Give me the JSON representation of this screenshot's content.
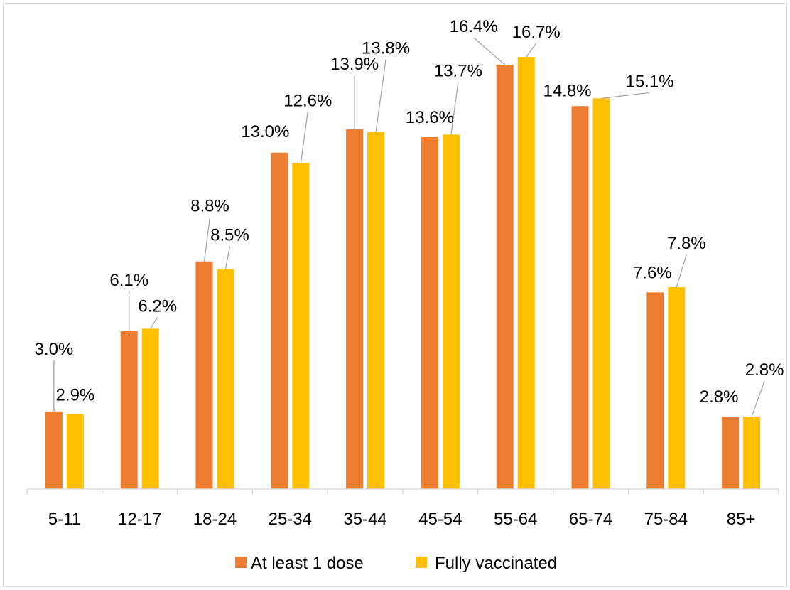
{
  "chart_data": {
    "type": "bar",
    "title": "",
    "xlabel": "",
    "ylabel": "",
    "ylim": [
      0,
      18
    ],
    "grid": false,
    "legend_position": "bottom",
    "categories": [
      "5-11",
      "12-17",
      "18-24",
      "25-34",
      "35-44",
      "45-54",
      "55-64",
      "65-74",
      "75-84",
      "85+"
    ],
    "series": [
      {
        "name": "At least 1 dose",
        "color": "#ed7d31",
        "values": [
          3.0,
          6.1,
          8.8,
          13.0,
          13.9,
          13.6,
          16.4,
          14.8,
          7.6,
          2.8
        ],
        "labels": [
          "3.0%",
          "6.1%",
          "8.8%",
          "13.0%",
          "13.9%",
          "13.6%",
          "16.4%",
          "14.8%",
          "7.6%",
          "2.8%"
        ]
      },
      {
        "name": "Fully vaccinated",
        "color": "#ffc000",
        "values": [
          2.9,
          6.2,
          8.5,
          12.6,
          13.8,
          13.7,
          16.7,
          15.1,
          7.8,
          2.8
        ],
        "labels": [
          "2.9%",
          "6.2%",
          "8.5%",
          "12.6%",
          "13.8%",
          "13.7%",
          "16.7%",
          "15.1%",
          "7.8%",
          "2.8%"
        ]
      }
    ]
  }
}
